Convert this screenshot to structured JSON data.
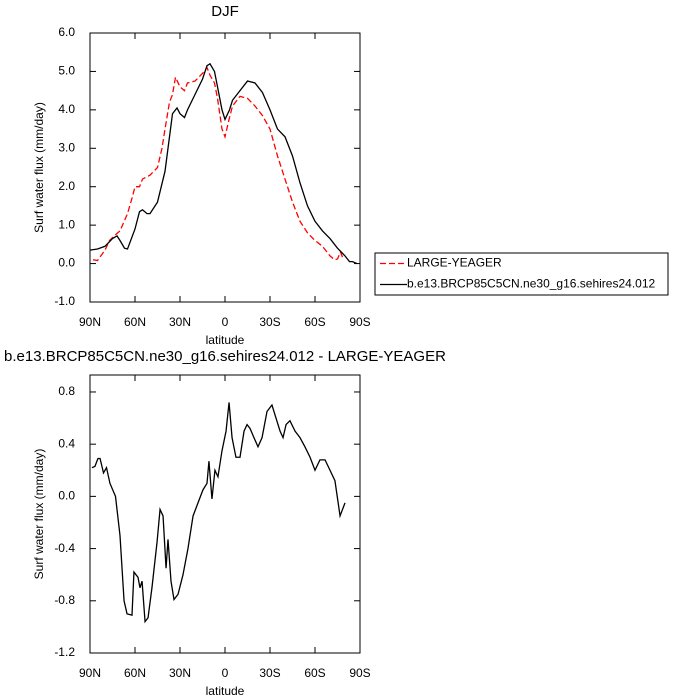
{
  "chart_data": [
    {
      "type": "line",
      "title": "DJF",
      "xlabel": "latitude",
      "ylabel": "Surf water flux (mm/day)",
      "xlim": [
        90,
        -90
      ],
      "xticks": [
        {
          "value": 90,
          "label": "90N"
        },
        {
          "value": 60,
          "label": "60N"
        },
        {
          "value": 30,
          "label": "30N"
        },
        0,
        {
          "value": -30,
          "label": "30S"
        },
        {
          "value": -60,
          "label": "60S"
        },
        {
          "value": -90,
          "label": "90S"
        }
      ],
      "ylim": [
        -1,
        6
      ],
      "yticks": [
        {
          "value": 6,
          "label": "6.0"
        },
        {
          "value": 5,
          "label": "5.0"
        },
        {
          "value": 4,
          "label": "4.0"
        },
        {
          "value": 3,
          "label": "3.0"
        },
        {
          "value": 2,
          "label": "2.0"
        },
        {
          "value": 1,
          "label": "1.0"
        },
        {
          "value": 0,
          "label": "0.0"
        },
        {
          "value": -1,
          "label": "-1.0"
        }
      ],
      "legend": "lower-right-outside",
      "series": [
        {
          "name": "LARGE-YEAGER",
          "color": "#ff0000",
          "line_style": "dashed",
          "x": [
            88,
            85,
            80,
            77,
            73,
            70,
            65,
            62,
            60,
            57,
            55,
            50,
            45,
            42,
            40,
            37,
            35,
            33,
            30,
            27,
            25,
            20,
            15,
            12,
            10,
            7,
            5,
            2,
            0,
            -3,
            -5,
            -10,
            -15,
            -20,
            -25,
            -30,
            -35,
            -40,
            -45,
            -50,
            -55,
            -60,
            -65,
            -70,
            -73,
            -75,
            -77,
            -79
          ],
          "values": [
            0.1,
            0.08,
            0.35,
            0.6,
            0.75,
            0.85,
            1.3,
            1.7,
            2.0,
            2.0,
            2.2,
            2.3,
            2.5,
            3.0,
            3.5,
            4.2,
            4.4,
            4.85,
            4.6,
            4.5,
            4.7,
            4.75,
            4.95,
            5.1,
            4.9,
            4.7,
            4.3,
            3.5,
            3.3,
            3.8,
            4.1,
            4.35,
            4.3,
            4.1,
            3.85,
            3.5,
            2.8,
            2.2,
            1.6,
            1.1,
            0.8,
            0.6,
            0.45,
            0.2,
            0.1,
            0.12,
            0.3,
            0.1
          ]
        },
        {
          "name": "b.e13.BRCP85C5CN.ne30_g16.sehires24.012",
          "color": "#000000",
          "line_style": "solid",
          "x": [
            90,
            85,
            80,
            75,
            72,
            70,
            67,
            65,
            60,
            57,
            55,
            52,
            50,
            45,
            40,
            37,
            35,
            32,
            30,
            27,
            25,
            20,
            15,
            12,
            10,
            7,
            5,
            2,
            0,
            -3,
            -5,
            -10,
            -15,
            -20,
            -25,
            -30,
            -35,
            -40,
            -45,
            -50,
            -55,
            -60,
            -65,
            -70,
            -75,
            -80,
            -83,
            -85,
            -88
          ],
          "values": [
            0.35,
            0.38,
            0.45,
            0.65,
            0.72,
            0.6,
            0.4,
            0.38,
            0.9,
            1.35,
            1.4,
            1.3,
            1.3,
            1.6,
            2.4,
            3.3,
            3.9,
            4.05,
            3.9,
            3.8,
            4.0,
            4.4,
            4.8,
            5.15,
            5.2,
            5.0,
            4.6,
            4.0,
            3.75,
            4.0,
            4.25,
            4.5,
            4.75,
            4.7,
            4.45,
            4.0,
            3.5,
            3.3,
            2.8,
            2.1,
            1.5,
            1.1,
            0.85,
            0.65,
            0.4,
            0.2,
            0.05,
            0.05,
            0.0
          ]
        }
      ]
    },
    {
      "type": "line",
      "title": "b.e13.BRCP85C5CN.ne30_g16.sehires24.012 - LARGE-YEAGER",
      "xlabel": "latitude",
      "ylabel": "Surf water flux (mm/day)",
      "xlim": [
        90,
        -90
      ],
      "xticks": [
        {
          "value": 90,
          "label": "90N"
        },
        {
          "value": 60,
          "label": "60N"
        },
        {
          "value": 30,
          "label": "30N"
        },
        0,
        {
          "value": -30,
          "label": "30S"
        },
        {
          "value": -60,
          "label": "60S"
        },
        {
          "value": -90,
          "label": "90S"
        }
      ],
      "ylim": [
        -1.2,
        0.93
      ],
      "yticks": [
        0.8,
        0.4,
        {
          "value": 0,
          "label": "0.0"
        },
        -0.4,
        -0.8,
        -1.2
      ],
      "series": [
        {
          "color": "#000000",
          "line_style": "solid",
          "x": [
            88.7,
            86.7,
            84.7,
            83.3,
            81,
            79,
            76.7,
            73,
            70,
            67.3,
            65.3,
            62,
            60.7,
            58,
            56.7,
            55.3,
            53.3,
            51.3,
            48.7,
            45.3,
            43.3,
            41.3,
            39.3,
            38,
            36,
            34,
            31.3,
            28,
            24.7,
            21.3,
            18,
            14.7,
            12,
            10.7,
            8.7,
            6.7,
            4.7,
            2,
            -0.7,
            -2.7,
            -4.7,
            -7.3,
            -10,
            -12.7,
            -14.7,
            -16.7,
            -19.3,
            -22,
            -24.7,
            -28,
            -31.3,
            -34,
            -36.7,
            -38.7,
            -40.7,
            -43.3,
            -46.7,
            -50,
            -53.3,
            -56.7,
            -60,
            -63.3,
            -66.7,
            -70,
            -73.3,
            -76.7,
            -80
          ],
          "values": [
            0.22,
            0.23,
            0.29,
            0.29,
            0.18,
            0.22,
            0.1,
            0.0,
            -0.3,
            -0.8,
            -0.9,
            -0.91,
            -0.58,
            -0.62,
            -0.7,
            -0.65,
            -0.96,
            -0.93,
            -0.7,
            -0.35,
            -0.1,
            -0.15,
            -0.55,
            -0.33,
            -0.65,
            -0.79,
            -0.75,
            -0.6,
            -0.4,
            -0.15,
            -0.05,
            0.05,
            0.1,
            0.27,
            -0.02,
            0.2,
            0.15,
            0.35,
            0.5,
            0.72,
            0.45,
            0.3,
            0.3,
            0.5,
            0.55,
            0.52,
            0.45,
            0.38,
            0.45,
            0.65,
            0.7,
            0.6,
            0.5,
            0.45,
            0.55,
            0.58,
            0.5,
            0.45,
            0.38,
            0.3,
            0.2,
            0.28,
            0.28,
            0.2,
            0.12,
            -0.15,
            -0.05
          ]
        }
      ]
    }
  ]
}
